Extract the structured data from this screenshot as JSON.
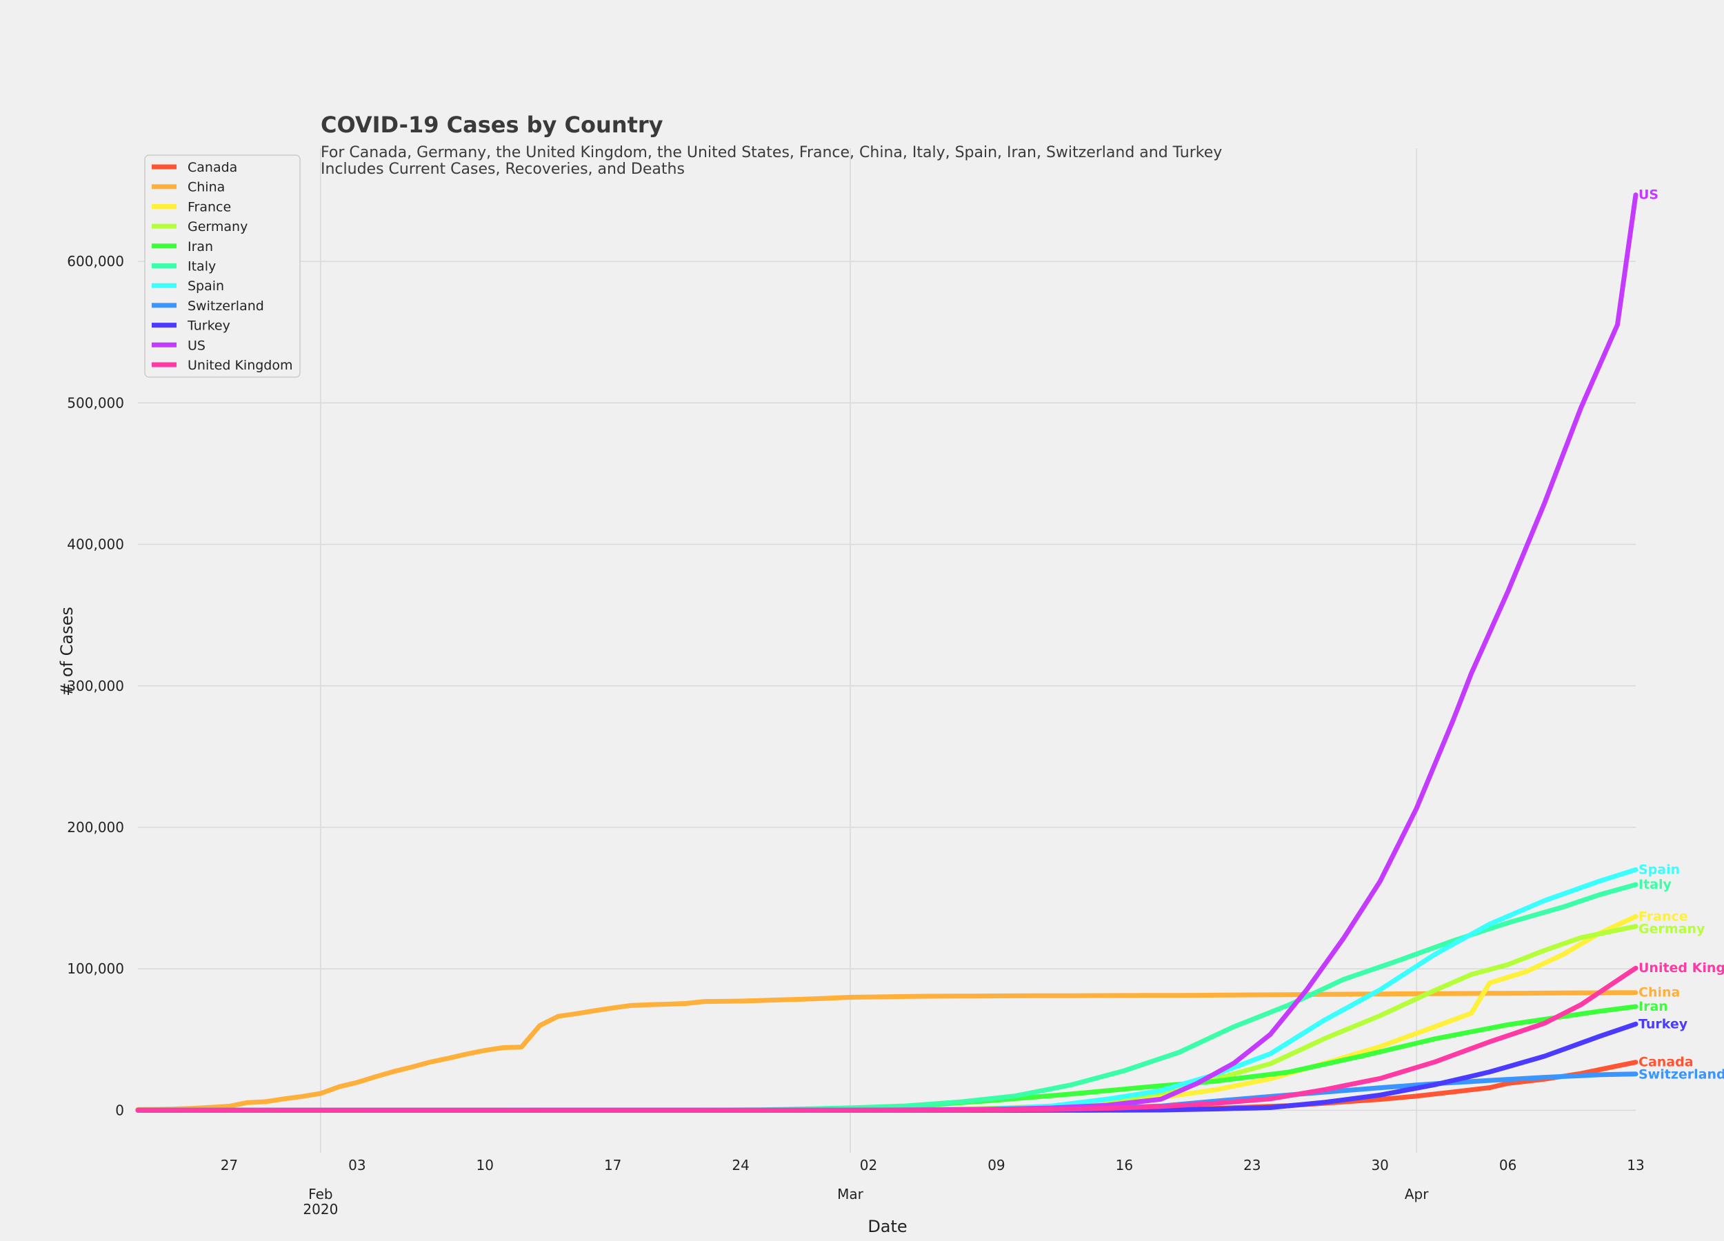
{
  "chart_data": {
    "type": "line",
    "title": "COVID-19 Cases by Country",
    "subtitle_lines": [
      "For Canada, Germany, the United Kingdom, the United States, France, China, Italy, Spain, Iran, Switzerland and Turkey",
      "Includes Current Cases, Recoveries, and Deaths"
    ],
    "xlabel": "Date",
    "ylabel": "# of Cases",
    "x_range": [
      "2020-01-22",
      "2020-04-13"
    ],
    "y_range": [
      -30000,
      680000
    ],
    "y_ticks": [
      {
        "v": 0,
        "label": "0"
      },
      {
        "v": 100000,
        "label": "100,000"
      },
      {
        "v": 200000,
        "label": "200,000"
      },
      {
        "v": 300000,
        "label": "300,000"
      },
      {
        "v": 400000,
        "label": "400,000"
      },
      {
        "v": 500000,
        "label": "500,000"
      },
      {
        "v": 600000,
        "label": "600,000"
      }
    ],
    "x_ticks": [
      {
        "date": "2020-01-27",
        "label": "27"
      },
      {
        "date": "2020-02-01",
        "label": "Feb",
        "label2": "2020",
        "major": true
      },
      {
        "date": "2020-02-03",
        "label": "03"
      },
      {
        "date": "2020-02-10",
        "label": "10"
      },
      {
        "date": "2020-02-17",
        "label": "17"
      },
      {
        "date": "2020-02-24",
        "label": "24"
      },
      {
        "date": "2020-03-01",
        "label": "Mar",
        "major": true
      },
      {
        "date": "2020-03-02",
        "label": "02"
      },
      {
        "date": "2020-03-09",
        "label": "09"
      },
      {
        "date": "2020-03-16",
        "label": "16"
      },
      {
        "date": "2020-03-23",
        "label": "23"
      },
      {
        "date": "2020-03-30",
        "label": "30"
      },
      {
        "date": "2020-04-01",
        "label": "Apr",
        "major": true
      },
      {
        "date": "2020-04-06",
        "label": "06"
      },
      {
        "date": "2020-04-13",
        "label": "13"
      }
    ],
    "grid": true,
    "legend_position": "top-left",
    "series": [
      {
        "name": "Canada",
        "color": "#ff5533",
        "points": [
          [
            "2020-01-22",
            0
          ],
          [
            "2020-03-10",
            80
          ],
          [
            "2020-03-15",
            300
          ],
          [
            "2020-03-20",
            900
          ],
          [
            "2020-03-25",
            3300
          ],
          [
            "2020-03-30",
            7700
          ],
          [
            "2020-04-01",
            10000
          ],
          [
            "2020-04-03",
            13000
          ],
          [
            "2020-04-05",
            16000
          ],
          [
            "2020-04-06",
            19000
          ],
          [
            "2020-04-08",
            22000
          ],
          [
            "2020-04-10",
            26000
          ],
          [
            "2020-04-13",
            34000
          ]
        ]
      },
      {
        "name": "China",
        "color": "#ffb03b",
        "points": [
          [
            "2020-01-22",
            550
          ],
          [
            "2020-01-23",
            640
          ],
          [
            "2020-01-24",
            900
          ],
          [
            "2020-01-25",
            1400
          ],
          [
            "2020-01-26",
            2100
          ],
          [
            "2020-01-27",
            2900
          ],
          [
            "2020-01-28",
            5500
          ],
          [
            "2020-01-29",
            6100
          ],
          [
            "2020-01-30",
            8100
          ],
          [
            "2020-01-31",
            9800
          ],
          [
            "2020-02-01",
            11900
          ],
          [
            "2020-02-02",
            16600
          ],
          [
            "2020-02-03",
            19700
          ],
          [
            "2020-02-04",
            23700
          ],
          [
            "2020-02-05",
            27400
          ],
          [
            "2020-02-06",
            30600
          ],
          [
            "2020-02-07",
            34100
          ],
          [
            "2020-02-08",
            36800
          ],
          [
            "2020-02-09",
            39800
          ],
          [
            "2020-02-10",
            42300
          ],
          [
            "2020-02-11",
            44300
          ],
          [
            "2020-02-12",
            44700
          ],
          [
            "2020-02-13",
            59900
          ],
          [
            "2020-02-14",
            66400
          ],
          [
            "2020-02-15",
            68300
          ],
          [
            "2020-02-16",
            70400
          ],
          [
            "2020-02-17",
            72400
          ],
          [
            "2020-02-18",
            74100
          ],
          [
            "2020-02-19",
            74600
          ],
          [
            "2020-02-20",
            75000
          ],
          [
            "2020-02-21",
            75500
          ],
          [
            "2020-02-22",
            76900
          ],
          [
            "2020-02-23",
            77000
          ],
          [
            "2020-02-24",
            77200
          ],
          [
            "2020-02-26",
            78000
          ],
          [
            "2020-02-28",
            78800
          ],
          [
            "2020-03-01",
            79900
          ],
          [
            "2020-03-05",
            80600
          ],
          [
            "2020-03-10",
            80900
          ],
          [
            "2020-03-20",
            81300
          ],
          [
            "2020-03-31",
            82300
          ],
          [
            "2020-04-13",
            83200
          ]
        ]
      },
      {
        "name": "France",
        "color": "#fff03a",
        "points": [
          [
            "2020-01-22",
            0
          ],
          [
            "2020-03-01",
            130
          ],
          [
            "2020-03-08",
            1200
          ],
          [
            "2020-03-12",
            2900
          ],
          [
            "2020-03-15",
            5400
          ],
          [
            "2020-03-18",
            9100
          ],
          [
            "2020-03-21",
            14500
          ],
          [
            "2020-03-24",
            22300
          ],
          [
            "2020-03-27",
            33400
          ],
          [
            "2020-03-30",
            45000
          ],
          [
            "2020-04-02",
            59100
          ],
          [
            "2020-04-04",
            68600
          ],
          [
            "2020-04-05",
            90000
          ],
          [
            "2020-04-07",
            98000
          ],
          [
            "2020-04-09",
            110000
          ],
          [
            "2020-04-11",
            125000
          ],
          [
            "2020-04-13",
            137000
          ]
        ]
      },
      {
        "name": "Germany",
        "color": "#b5ff3a",
        "points": [
          [
            "2020-01-22",
            0
          ],
          [
            "2020-03-01",
            130
          ],
          [
            "2020-03-08",
            1000
          ],
          [
            "2020-03-12",
            2700
          ],
          [
            "2020-03-15",
            5800
          ],
          [
            "2020-03-18",
            12300
          ],
          [
            "2020-03-21",
            22200
          ],
          [
            "2020-03-24",
            32900
          ],
          [
            "2020-03-27",
            50900
          ],
          [
            "2020-03-30",
            66900
          ],
          [
            "2020-04-02",
            84800
          ],
          [
            "2020-04-04",
            96000
          ],
          [
            "2020-04-06",
            103000
          ],
          [
            "2020-04-08",
            113000
          ],
          [
            "2020-04-10",
            122000
          ],
          [
            "2020-04-13",
            130000
          ]
        ]
      },
      {
        "name": "Iran",
        "color": "#3aff3a",
        "points": [
          [
            "2020-01-22",
            0
          ],
          [
            "2020-02-19",
            2
          ],
          [
            "2020-02-25",
            95
          ],
          [
            "2020-03-01",
            980
          ],
          [
            "2020-03-05",
            3500
          ],
          [
            "2020-03-09",
            7200
          ],
          [
            "2020-03-13",
            11400
          ],
          [
            "2020-03-17",
            16200
          ],
          [
            "2020-03-21",
            20600
          ],
          [
            "2020-03-25",
            27000
          ],
          [
            "2020-03-29",
            38300
          ],
          [
            "2020-04-02",
            50500
          ],
          [
            "2020-04-06",
            60500
          ],
          [
            "2020-04-09",
            66200
          ],
          [
            "2020-04-11",
            70000
          ],
          [
            "2020-04-13",
            73300
          ]
        ]
      },
      {
        "name": "Italy",
        "color": "#3affa8",
        "points": [
          [
            "2020-01-22",
            0
          ],
          [
            "2020-02-21",
            20
          ],
          [
            "2020-02-25",
            320
          ],
          [
            "2020-03-01",
            1700
          ],
          [
            "2020-03-04",
            3100
          ],
          [
            "2020-03-07",
            5900
          ],
          [
            "2020-03-10",
            10100
          ],
          [
            "2020-03-13",
            17700
          ],
          [
            "2020-03-16",
            28000
          ],
          [
            "2020-03-19",
            41000
          ],
          [
            "2020-03-22",
            59100
          ],
          [
            "2020-03-25",
            74400
          ],
          [
            "2020-03-28",
            92500
          ],
          [
            "2020-03-31",
            105800
          ],
          [
            "2020-04-03",
            119800
          ],
          [
            "2020-04-06",
            132500
          ],
          [
            "2020-04-09",
            143600
          ],
          [
            "2020-04-11",
            152300
          ],
          [
            "2020-04-13",
            159500
          ]
        ]
      },
      {
        "name": "Spain",
        "color": "#3affff",
        "points": [
          [
            "2020-01-22",
            0
          ],
          [
            "2020-03-01",
            80
          ],
          [
            "2020-03-05",
            280
          ],
          [
            "2020-03-09",
            1200
          ],
          [
            "2020-03-12",
            3000
          ],
          [
            "2020-03-15",
            7800
          ],
          [
            "2020-03-18",
            13900
          ],
          [
            "2020-03-21",
            25400
          ],
          [
            "2020-03-24",
            40000
          ],
          [
            "2020-03-27",
            64100
          ],
          [
            "2020-03-30",
            85200
          ],
          [
            "2020-04-02",
            110200
          ],
          [
            "2020-04-05",
            131600
          ],
          [
            "2020-04-08",
            148200
          ],
          [
            "2020-04-11",
            161900
          ],
          [
            "2020-04-13",
            170100
          ]
        ]
      },
      {
        "name": "Switzerland",
        "color": "#3a95ff",
        "points": [
          [
            "2020-01-22",
            0
          ],
          [
            "2020-03-01",
            30
          ],
          [
            "2020-03-06",
            210
          ],
          [
            "2020-03-10",
            500
          ],
          [
            "2020-03-14",
            1360
          ],
          [
            "2020-03-18",
            3000
          ],
          [
            "2020-03-21",
            6500
          ],
          [
            "2020-03-24",
            9800
          ],
          [
            "2020-03-27",
            12900
          ],
          [
            "2020-03-30",
            15900
          ],
          [
            "2020-04-02",
            18800
          ],
          [
            "2020-04-05",
            21100
          ],
          [
            "2020-04-08",
            23300
          ],
          [
            "2020-04-11",
            25100
          ],
          [
            "2020-04-13",
            25700
          ]
        ]
      },
      {
        "name": "Turkey",
        "color": "#4b3aff",
        "points": [
          [
            "2020-01-22",
            0
          ],
          [
            "2020-03-11",
            1
          ],
          [
            "2020-03-15",
            50
          ],
          [
            "2020-03-18",
            200
          ],
          [
            "2020-03-21",
            950
          ],
          [
            "2020-03-24",
            1900
          ],
          [
            "2020-03-27",
            5700
          ],
          [
            "2020-03-30",
            10800
          ],
          [
            "2020-04-02",
            18100
          ],
          [
            "2020-04-05",
            27100
          ],
          [
            "2020-04-08",
            38200
          ],
          [
            "2020-04-11",
            52200
          ],
          [
            "2020-04-13",
            61000
          ]
        ]
      },
      {
        "name": "US",
        "color": "#c43aff",
        "points": [
          [
            "2020-01-22",
            1
          ],
          [
            "2020-03-01",
            75
          ],
          [
            "2020-03-08",
            540
          ],
          [
            "2020-03-12",
            1660
          ],
          [
            "2020-03-15",
            3500
          ],
          [
            "2020-03-18",
            7800
          ],
          [
            "2020-03-20",
            19100
          ],
          [
            "2020-03-22",
            33300
          ],
          [
            "2020-03-24",
            53700
          ],
          [
            "2020-03-26",
            85400
          ],
          [
            "2020-03-28",
            121500
          ],
          [
            "2020-03-30",
            161800
          ],
          [
            "2020-04-01",
            213400
          ],
          [
            "2020-04-03",
            275600
          ],
          [
            "2020-04-04",
            308800
          ],
          [
            "2020-04-06",
            366600
          ],
          [
            "2020-04-08",
            429000
          ],
          [
            "2020-04-10",
            496500
          ],
          [
            "2020-04-12",
            555300
          ],
          [
            "2020-04-13",
            647000
          ]
        ]
      },
      {
        "name": "United Kingdom",
        "color": "#ff3aa5",
        "points": [
          [
            "2020-01-22",
            0
          ],
          [
            "2020-03-01",
            40
          ],
          [
            "2020-03-07",
            210
          ],
          [
            "2020-03-12",
            590
          ],
          [
            "2020-03-15",
            1390
          ],
          [
            "2020-03-18",
            2700
          ],
          [
            "2020-03-21",
            5000
          ],
          [
            "2020-03-24",
            8100
          ],
          [
            "2020-03-27",
            14700
          ],
          [
            "2020-03-30",
            22500
          ],
          [
            "2020-04-02",
            34200
          ],
          [
            "2020-04-05",
            48400
          ],
          [
            "2020-04-08",
            61500
          ],
          [
            "2020-04-10",
            74600
          ],
          [
            "2020-04-13",
            100500
          ]
        ]
      }
    ]
  }
}
